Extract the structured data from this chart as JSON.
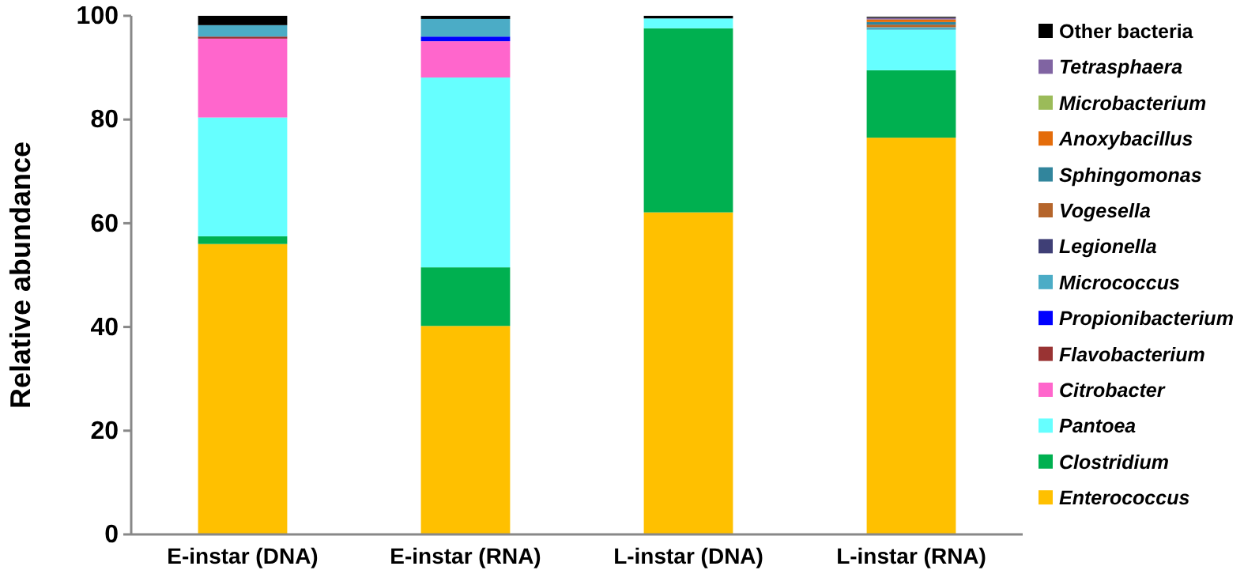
{
  "chart_data": {
    "type": "bar",
    "stacked": true,
    "ylabel": "Relative abundance",
    "categories": [
      "E-instar (DNA)",
      "E-instar (RNA)",
      "L-instar (DNA)",
      "L-instar (RNA)"
    ],
    "ylim": [
      0,
      100
    ],
    "yticks": [
      0,
      20,
      40,
      60,
      80,
      100
    ],
    "legend": "right",
    "series": [
      {
        "name": "Enterococcus",
        "color": "#ffc000",
        "values": [
          56,
          40.2,
          62.1,
          76.5
        ]
      },
      {
        "name": "Clostridium",
        "color": "#00b050",
        "values": [
          1.5,
          11.3,
          35.5,
          13
        ]
      },
      {
        "name": "Pantoea",
        "color": "#66ffff",
        "values": [
          22.9,
          36.6,
          1.9,
          7.8
        ]
      },
      {
        "name": "Citrobacter",
        "color": "#ff66cc",
        "values": [
          15.2,
          7,
          null,
          null
        ]
      },
      {
        "name": "Flavobacterium",
        "color": "#993333",
        "values": [
          0.4,
          null,
          null,
          null
        ]
      },
      {
        "name": "Propionibacterium",
        "color": "#0000ff",
        "values": [
          null,
          0.9,
          null,
          null
        ]
      },
      {
        "name": "Micrococcus",
        "color": "#4bacc6",
        "values": [
          2.2,
          3.4,
          null,
          0.5
        ]
      },
      {
        "name": "Legionella",
        "color": "#3f3f76",
        "values": [
          null,
          null,
          null,
          null
        ]
      },
      {
        "name": "Vogesella",
        "color": "#b5652b",
        "values": [
          null,
          null,
          null,
          0.5
        ]
      },
      {
        "name": "Sphingomonas",
        "color": "#31859c",
        "values": [
          null,
          null,
          null,
          0.5
        ]
      },
      {
        "name": "Anoxybacillus",
        "color": "#e46c0a",
        "values": [
          null,
          null,
          null,
          0.5
        ]
      },
      {
        "name": "Microbacterium",
        "color": "#9bbb59",
        "values": [
          null,
          null,
          null,
          null
        ]
      },
      {
        "name": "Tetrasphaera",
        "color": "#8064a2",
        "values": [
          null,
          null,
          null,
          0.3
        ]
      },
      {
        "name": "Other bacteria",
        "color": "#000000",
        "values": [
          1.8,
          0.6,
          0.5,
          0.2
        ]
      }
    ]
  }
}
